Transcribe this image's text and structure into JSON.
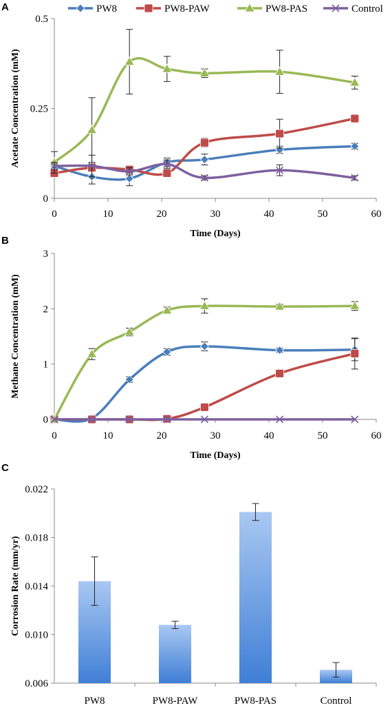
{
  "legend": [
    {
      "name": "PW8",
      "color": "#4a7ebb",
      "marker": "diamond"
    },
    {
      "name": "PW8-PAW",
      "color": "#be4b48",
      "marker": "square"
    },
    {
      "name": "PW8-PAS",
      "color": "#98b954",
      "marker": "triangle"
    },
    {
      "name": "Control",
      "color": "#7d60a0",
      "marker": "x"
    }
  ],
  "chart_data": [
    {
      "panel": "A",
      "type": "line",
      "xlabel": "Time (Days)",
      "ylabel": "Acetate Concentration (mM)",
      "xlim": [
        0,
        60
      ],
      "ylim": [
        0,
        0.5
      ],
      "xticks": [
        0,
        10,
        20,
        30,
        40,
        50,
        60
      ],
      "yticks": [
        0,
        0.25,
        0.5
      ],
      "ytick_labels": [
        "0",
        "0.25",
        "0.5"
      ],
      "x": [
        0,
        7,
        14,
        21,
        28,
        42,
        56
      ],
      "series": [
        {
          "name": "PW8",
          "values": [
            0.09,
            0.06,
            0.055,
            0.1,
            0.108,
            0.135,
            0.145
          ],
          "err": [
            0.01,
            0.02,
            0.02,
            0.012,
            0.015,
            0.01,
            0.008
          ]
        },
        {
          "name": "PW8-PAW",
          "values": [
            0.07,
            0.085,
            0.08,
            0.07,
            0.155,
            0.18,
            0.222
          ],
          "err": [
            0.01,
            0.01,
            0.01,
            0.008,
            0.012,
            0.04,
            0.01
          ]
        },
        {
          "name": "PW8-PAS",
          "values": [
            0.1,
            0.19,
            0.38,
            0.36,
            0.348,
            0.352,
            0.322
          ],
          "err": [
            0.03,
            0.09,
            0.09,
            0.035,
            0.012,
            0.06,
            0.018
          ]
        },
        {
          "name": "Control",
          "values": [
            0.09,
            0.09,
            0.075,
            0.095,
            0.057,
            0.078,
            0.057
          ],
          "err": [
            0.01,
            0.03,
            0.01,
            0.012,
            0.006,
            0.015,
            0.006
          ]
        }
      ]
    },
    {
      "panel": "B",
      "type": "line",
      "xlabel": "Time (Days)",
      "ylabel": "Methane Concentration (mM)",
      "xlim": [
        0,
        60
      ],
      "ylim": [
        0,
        3
      ],
      "xticks": [
        0,
        10,
        20,
        30,
        40,
        50,
        60
      ],
      "yticks": [
        0,
        1,
        2,
        3
      ],
      "ytick_labels": [
        "0",
        "1",
        "2",
        "3"
      ],
      "x": [
        0,
        7,
        14,
        21,
        28,
        42,
        56
      ],
      "series": [
        {
          "name": "PW8",
          "values": [
            0,
            0.02,
            0.72,
            1.22,
            1.32,
            1.25,
            1.26
          ],
          "err": [
            0,
            0.01,
            0.05,
            0.06,
            0.08,
            0.04,
            0.2
          ]
        },
        {
          "name": "PW8-PAW",
          "values": [
            0,
            0,
            0,
            0.01,
            0.22,
            0.83,
            1.19
          ],
          "err": [
            0,
            0,
            0,
            0,
            0.02,
            0.04,
            0.28
          ]
        },
        {
          "name": "PW8-PAS",
          "values": [
            0,
            1.18,
            1.58,
            1.97,
            2.05,
            2.04,
            2.05
          ],
          "err": [
            0,
            0.1,
            0.07,
            0.06,
            0.13,
            0.04,
            0.08
          ]
        },
        {
          "name": "Control",
          "values": [
            0,
            0,
            0,
            0,
            0,
            0,
            0
          ],
          "err": [
            0,
            0,
            0,
            0,
            0,
            0,
            0
          ]
        }
      ]
    },
    {
      "panel": "C",
      "type": "bar",
      "xlabel": "",
      "ylabel": "Corrosion Rate (mm/yr)",
      "ylim": [
        0.006,
        0.022
      ],
      "yticks": [
        0.006,
        0.01,
        0.014,
        0.018,
        0.022
      ],
      "ytick_labels": [
        "0.006",
        "0.010",
        "0.014",
        "0.018",
        "0.022"
      ],
      "categories": [
        "PW8",
        "PW8-PAW",
        "PW8-PAS",
        "Control"
      ],
      "values": [
        0.0144,
        0.0108,
        0.0201,
        0.0071
      ],
      "err": [
        0.002,
        0.0003,
        0.0007,
        0.0006
      ]
    }
  ]
}
